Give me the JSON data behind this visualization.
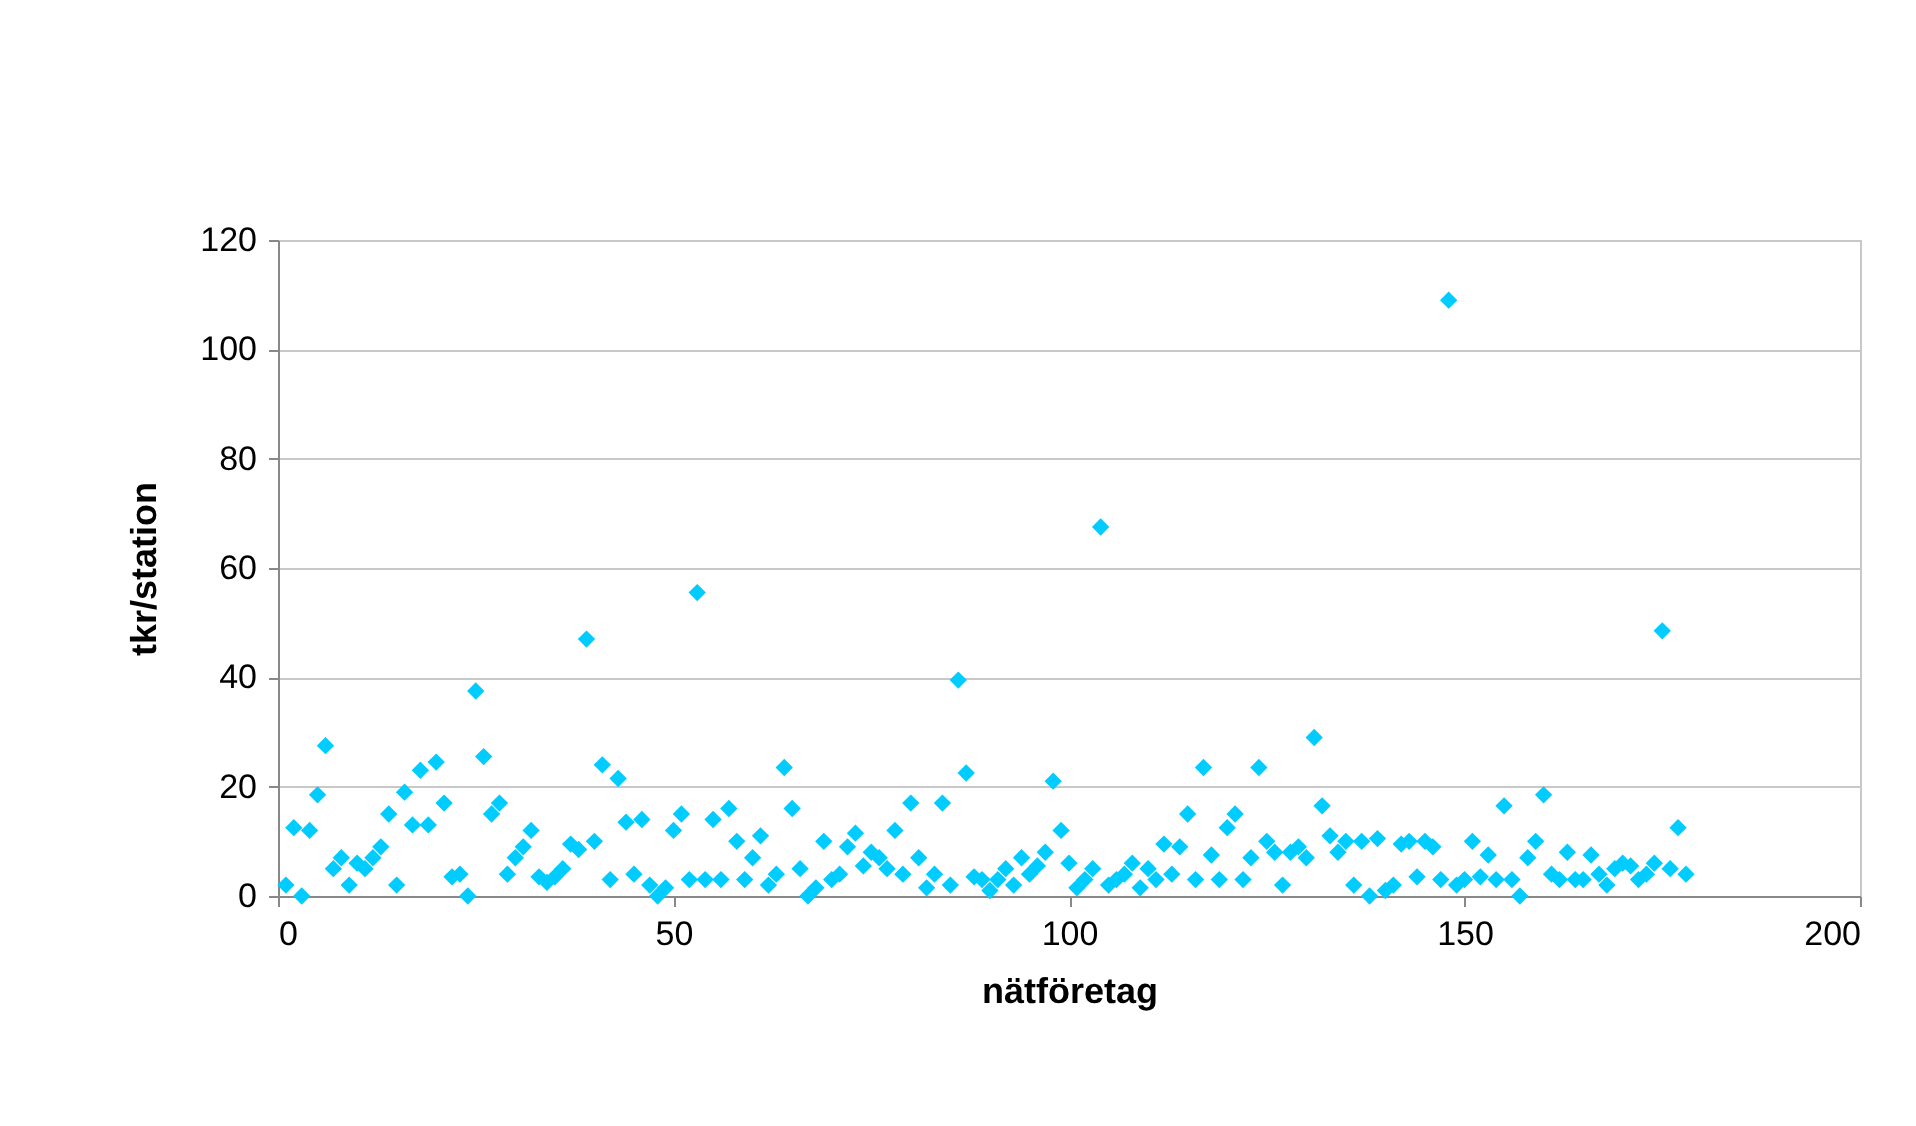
{
  "chart_data": {
    "type": "scatter",
    "xlabel": "nätföretag",
    "ylabel": "tkr/station",
    "x": [
      1,
      2,
      3,
      4,
      5,
      6,
      7,
      8,
      9,
      10,
      11,
      12,
      13,
      14,
      15,
      16,
      17,
      18,
      19,
      20,
      21,
      22,
      23,
      24,
      25,
      26,
      27,
      28,
      29,
      30,
      31,
      32,
      33,
      34,
      35,
      36,
      37,
      38,
      39,
      40,
      41,
      42,
      43,
      44,
      45,
      46,
      47,
      48,
      49,
      50,
      51,
      52,
      53,
      54,
      55,
      56,
      57,
      58,
      59,
      60,
      61,
      62,
      63,
      64,
      65,
      66,
      67,
      68,
      69,
      70,
      71,
      72,
      73,
      74,
      75,
      76,
      77,
      78,
      79,
      80,
      81,
      82,
      83,
      84,
      85,
      86,
      87,
      88,
      89,
      90,
      91,
      92,
      93,
      94,
      95,
      96,
      97,
      98,
      99,
      100,
      101,
      102,
      103,
      104,
      105,
      106,
      107,
      108,
      109,
      110,
      111,
      112,
      113,
      114,
      115,
      116,
      117,
      118,
      119,
      120,
      121,
      122,
      123,
      124,
      125,
      126,
      127,
      128,
      129,
      130,
      131,
      132,
      133,
      134,
      135,
      136,
      137,
      138,
      139,
      140,
      141,
      142,
      143,
      144,
      145,
      146,
      147,
      148,
      149,
      150,
      151,
      152,
      153,
      154,
      155,
      156,
      157,
      158,
      159,
      160,
      161,
      162,
      163,
      164,
      165,
      166,
      167,
      168,
      169,
      170,
      171,
      172,
      173,
      174,
      175,
      176,
      177,
      178
    ],
    "series": [
      {
        "color": "#00ccff",
        "values": [
          2,
          12.5,
          0,
          12,
          18.5,
          27.5,
          5,
          7,
          2,
          6,
          5,
          7,
          9,
          15,
          2,
          19,
          13,
          23,
          13,
          24.5,
          17,
          3.5,
          4,
          0,
          37.5,
          25.5,
          15,
          17,
          4,
          7,
          9,
          12,
          3.5,
          2.5,
          3.5,
          5,
          9.5,
          8.5,
          47,
          10,
          24,
          3,
          21.5,
          13.5,
          4,
          14,
          2,
          0,
          1.5,
          12,
          15,
          3,
          55.5,
          3,
          14,
          3,
          16,
          10,
          3,
          7,
          11,
          2,
          4,
          23.5,
          16,
          5,
          0,
          1.5,
          10,
          3,
          4,
          9,
          11.5,
          5.5,
          8,
          7,
          5,
          12,
          4,
          17,
          7,
          1.5,
          4,
          17,
          2,
          39.5,
          22.5,
          3.5,
          3,
          1,
          3,
          5,
          2,
          7,
          4,
          5.5,
          8,
          21,
          12,
          6,
          1.5,
          3,
          5,
          67.5,
          2,
          3,
          4,
          6,
          1.5,
          5,
          3,
          9.5,
          4,
          9,
          15,
          3,
          23.5,
          7.5,
          3,
          12.5,
          15,
          3,
          7,
          23.5,
          10,
          8,
          2,
          8,
          9,
          7,
          29,
          16.5,
          11,
          8,
          10,
          2,
          10,
          0,
          10.5,
          1,
          2,
          9.5,
          10,
          3.5,
          10,
          9,
          3,
          109,
          2,
          3,
          10,
          3.5,
          7.5,
          3,
          16.5,
          3,
          0,
          7,
          10,
          18.5,
          4,
          3,
          8,
          3,
          3,
          7.5,
          4,
          2,
          5,
          6,
          5.5,
          3,
          4,
          6,
          48.5,
          5,
          12.5,
          4
        ]
      }
    ],
    "xlim": [
      0,
      200
    ],
    "xticks": [
      0,
      50,
      100,
      150,
      200
    ],
    "ylim": [
      0,
      120
    ],
    "yticks": [
      0,
      20,
      40,
      60,
      80,
      100,
      120
    ],
    "grid": "y",
    "marker": "diamond"
  }
}
